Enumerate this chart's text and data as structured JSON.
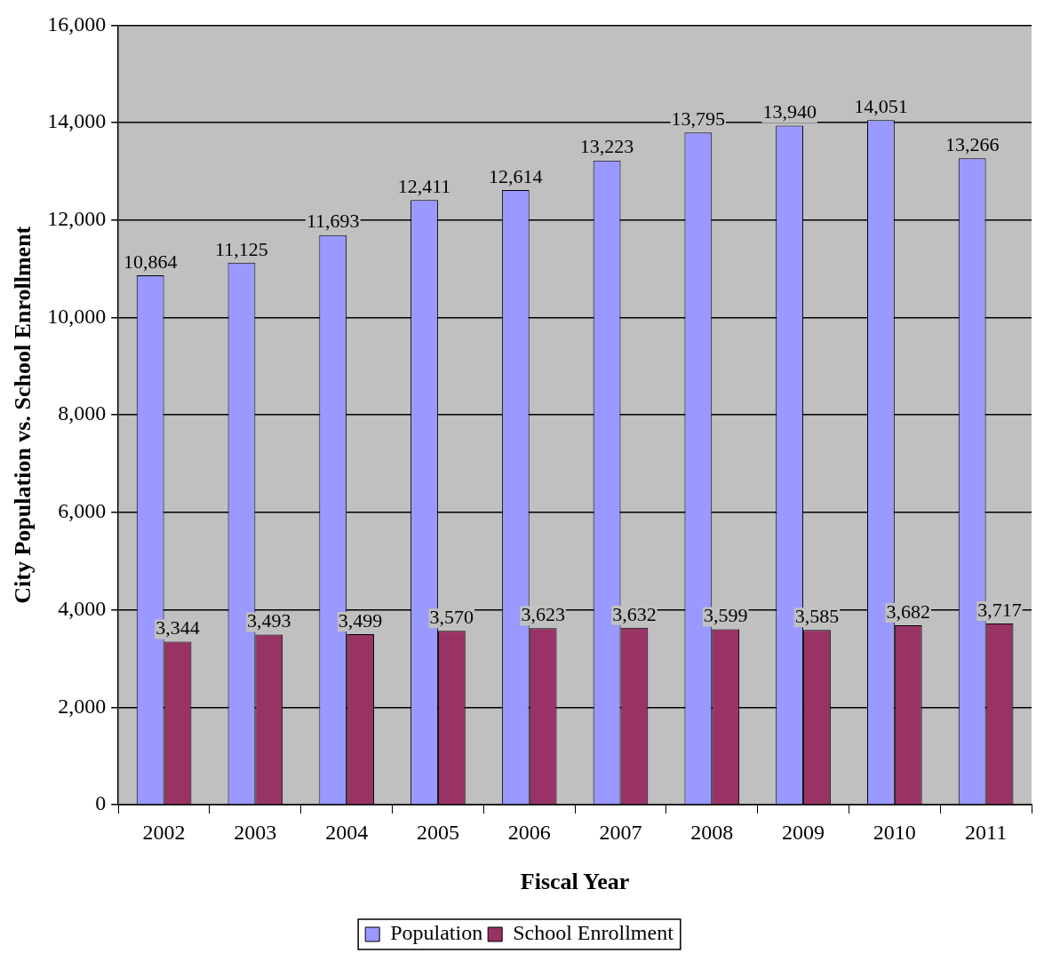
{
  "chart_data": {
    "type": "bar",
    "xlabel": "Fiscal Year",
    "ylabel": "City Population vs. School Enrollment",
    "categories": [
      "2002",
      "2003",
      "2004",
      "2005",
      "2006",
      "2007",
      "2008",
      "2009",
      "2010",
      "2011"
    ],
    "series": [
      {
        "name": "Population",
        "color": "#9999ff",
        "values": [
          10864,
          11125,
          11693,
          12411,
          12614,
          13223,
          13795,
          13940,
          14051,
          13266
        ],
        "value_labels": [
          "10,864",
          "11,125",
          "11,693",
          "12,411",
          "12,614",
          "13,223",
          "13,795",
          "13,940",
          "14,051",
          "13,266"
        ]
      },
      {
        "name": "School Enrollment",
        "color": "#993366",
        "values": [
          3344,
          3493,
          3499,
          3570,
          3623,
          3632,
          3599,
          3585,
          3682,
          3717
        ],
        "value_labels": [
          "3,344",
          "3,493",
          "3,499",
          "3,570",
          "3,623",
          "3,632",
          "3,599",
          "3,585",
          "3,682",
          "3,717"
        ]
      }
    ],
    "ylim": [
      0,
      16000
    ],
    "yticks": [
      {
        "value": 0,
        "label": "0"
      },
      {
        "value": 2000,
        "label": "2,000"
      },
      {
        "value": 4000,
        "label": "4,000"
      },
      {
        "value": 6000,
        "label": "6,000"
      },
      {
        "value": 8000,
        "label": "8,000"
      },
      {
        "value": 10000,
        "label": "10,000"
      },
      {
        "value": 12000,
        "label": "12,000"
      },
      {
        "value": 14000,
        "label": "14,000"
      },
      {
        "value": 16000,
        "label": "16,000"
      }
    ],
    "grid": "y",
    "legend": "bottom"
  }
}
